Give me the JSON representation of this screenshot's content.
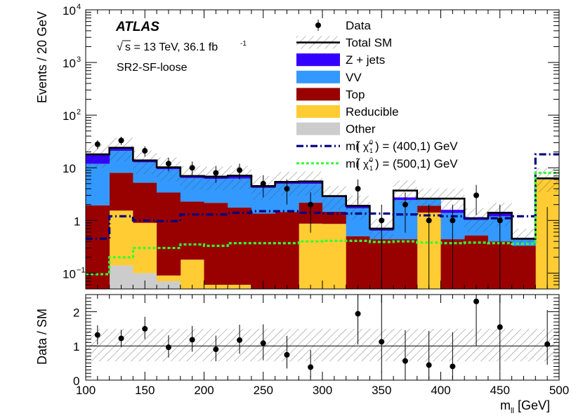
{
  "chart_data": {
    "type": "stacked-histogram-log",
    "experiment": "ATLAS",
    "energy_text": "s = 13 TeV, 36.1 fb",
    "energy_sup": "-1",
    "sqrt_symbol": "√",
    "region": "SR2-SF-loose",
    "ylabel": "Events / 20 GeV",
    "xlabel": "m",
    "xlabel_sub": "ll",
    "xlabel_unit": " [GeV]",
    "ratio_ylabel": "Data / SM",
    "xlim": [
      100,
      500
    ],
    "ylim": [
      0.05,
      10000
    ],
    "ratio_ylim": [
      0,
      2.5
    ],
    "x_ticks": [
      "100",
      "150",
      "200",
      "250",
      "300",
      "350",
      "400",
      "450",
      "500"
    ],
    "y_ticks": [
      {
        "value": 0.1,
        "base": "10",
        "exp": "−1"
      },
      {
        "value": 1,
        "base": "1",
        "exp": ""
      },
      {
        "value": 10,
        "base": "10",
        "exp": ""
      },
      {
        "value": 100,
        "base": "10",
        "exp": "2"
      },
      {
        "value": 1000,
        "base": "10",
        "exp": "3"
      },
      {
        "value": 10000,
        "base": "10",
        "exp": "4"
      }
    ],
    "ratio_ticks": [
      "0",
      "1",
      "2"
    ],
    "bin_edges": [
      100,
      120,
      140,
      160,
      180,
      200,
      220,
      240,
      260,
      280,
      300,
      320,
      340,
      360,
      380,
      400,
      420,
      440,
      460,
      480,
      500
    ],
    "stack": [
      {
        "name": "Other",
        "color": "#cccccc",
        "values": [
          0.02,
          0.14,
          0.1,
          0.07,
          0.05,
          0.04,
          0.04,
          0.03,
          0.02,
          0.02,
          0.01,
          0.01,
          0.01,
          0.01,
          0.01,
          0.01,
          0.01,
          0.01,
          0.01,
          0.01
        ]
      },
      {
        "name": "Reducible",
        "color": "#ffcc33",
        "values": [
          0.02,
          1.4,
          0.8,
          0.02,
          0.13,
          0.02,
          0.02,
          0.02,
          0.02,
          0.85,
          0.85,
          0.01,
          0.01,
          0.01,
          1.4,
          0.01,
          0.01,
          0.01,
          0.01,
          6.0
        ]
      },
      {
        "name": "Top",
        "color": "#990000",
        "values": [
          1.9,
          6.5,
          4.3,
          3.3,
          2.1,
          2.1,
          1.7,
          1.3,
          1.4,
          1.3,
          0.6,
          0.48,
          0.42,
          0.42,
          0.5,
          0.42,
          0.5,
          0.38,
          0.31,
          0.01
        ]
      },
      {
        "name": "VV",
        "color": "#3399ff",
        "values": [
          10.0,
          13.0,
          7.5,
          6.0,
          4.1,
          4.0,
          4.5,
          2.8,
          3.5,
          2.8,
          1.3,
          1.2,
          0.2,
          2.0,
          0.6,
          0.95,
          0.5,
          0.8,
          0.1,
          0.2
        ]
      },
      {
        "name": "Z + jets",
        "color": "#3300ff",
        "values": [
          6.0,
          3.0,
          1.2,
          0.9,
          0.6,
          0.6,
          0.8,
          0.3,
          0.5,
          0.5,
          0.2,
          0.2,
          0.05,
          0.3,
          0.05,
          0.2,
          0.05,
          0.2,
          0.02,
          0.1
        ]
      }
    ],
    "total_sm": [
      18,
      24,
      13.8,
      10.2,
      7.0,
      6.8,
      7.1,
      4.5,
      5.4,
      5.5,
      2.9,
      1.9,
      0.7,
      3.7,
      2.6,
      2.6,
      1.1,
      1.4,
      0.45,
      6.3
    ],
    "data": {
      "x": [
        110,
        130,
        150,
        170,
        190,
        210,
        230,
        250,
        270,
        290,
        330,
        350,
        370,
        390,
        410,
        430,
        450,
        490
      ],
      "y": [
        28,
        33,
        21,
        12,
        10,
        8,
        9,
        5,
        4,
        2,
        4,
        1,
        2,
        1,
        1,
        3,
        1,
        0
      ]
    },
    "signals": [
      {
        "name": "m(l̃, χ̃₁⁰) = (400,1) GeV",
        "label_pre": "m(",
        "label_l": "l̃",
        "label_chi": "χ̃",
        "label_chi_sup": "0",
        "label_chi_sub": "1",
        "label_post": ") = (400,1) GeV",
        "color": "#000080",
        "dash": "10,4,2,4",
        "values": [
          0.45,
          1.2,
          1.0,
          0.97,
          1.3,
          1.3,
          1.4,
          1.5,
          1.5,
          1.4,
          1.35,
          1.35,
          1.35,
          1.3,
          1.25,
          1.2,
          1.1,
          1.1,
          1.2,
          18
        ]
      },
      {
        "name": "m(l̃, χ̃₁⁰) = (500,1) GeV",
        "label_pre": "m(",
        "label_l": "l̃",
        "label_chi": "χ̃",
        "label_chi_sup": "0",
        "label_chi_sub": "1",
        "label_post": ") = (500,1) GeV",
        "color": "#33ff33",
        "dash": "4,3",
        "values": [
          0.095,
          0.2,
          0.3,
          0.3,
          0.35,
          0.33,
          0.37,
          0.37,
          0.37,
          0.4,
          0.41,
          0.41,
          0.39,
          0.4,
          0.38,
          0.37,
          0.38,
          0.37,
          0.36,
          8.0
        ]
      }
    ],
    "ratio": {
      "x": [
        110,
        130,
        150,
        170,
        190,
        210,
        230,
        250,
        270,
        290,
        330,
        350,
        370,
        390,
        410,
        430,
        450,
        490
      ],
      "y": [
        1.32,
        1.22,
        1.5,
        0.96,
        1.18,
        0.9,
        1.17,
        1.08,
        0.74,
        0.38,
        1.94,
        1.12,
        0.56,
        0.44,
        0.4,
        2.3,
        1.55,
        1.05
      ],
      "err_lo": [
        0.28,
        0.25,
        0.3,
        0.3,
        0.35,
        0.35,
        0.4,
        0.5,
        0.4,
        0.3,
        0.9,
        0.9,
        0.45,
        0.4,
        0.35,
        1.3,
        1.3,
        0.6
      ],
      "err_hi": [
        0.28,
        0.25,
        0.35,
        0.35,
        0.4,
        0.4,
        0.45,
        0.55,
        0.55,
        0.5,
        1.3,
        2.0,
        0.9,
        1.0,
        1.0,
        2.0,
        2.0,
        1.0
      ]
    },
    "legend": {
      "position": "top-right",
      "entries": [
        {
          "label": "Data",
          "kind": "marker"
        },
        {
          "label": "Total SM",
          "kind": "total"
        },
        {
          "label": "Z + jets",
          "kind": "fill",
          "color": "#3300ff"
        },
        {
          "label": "VV",
          "kind": "fill",
          "color": "#3399ff"
        },
        {
          "label": "Top",
          "kind": "fill",
          "color": "#990000"
        },
        {
          "label": "Reducible",
          "kind": "fill",
          "color": "#ffcc33"
        },
        {
          "label": "Other",
          "kind": "fill",
          "color": "#cccccc"
        }
      ]
    }
  }
}
